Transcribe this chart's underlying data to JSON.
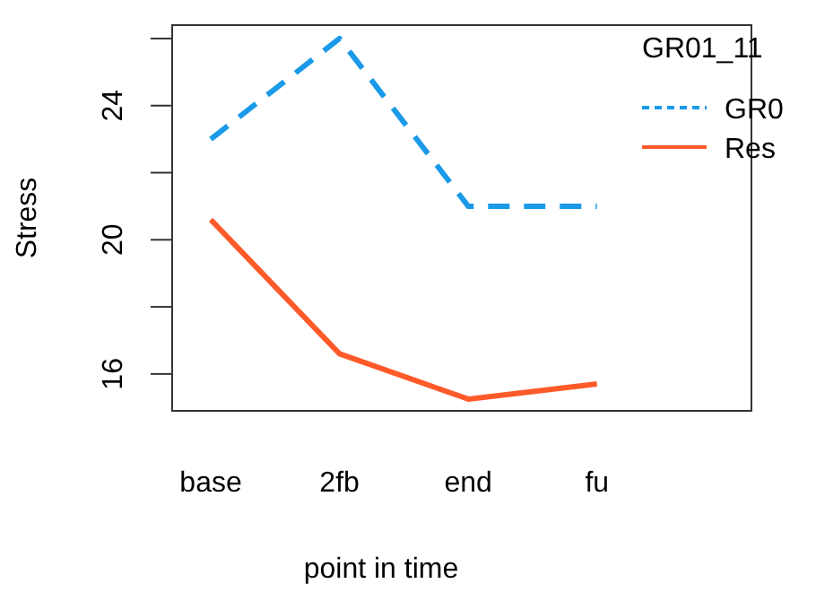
{
  "chart_data": {
    "type": "line",
    "xlabel": "point in time",
    "ylabel": "Stress",
    "legend_title": "GR01_11",
    "categories": [
      "base",
      "2fb",
      "end",
      "fu"
    ],
    "series": [
      {
        "name": "GR0",
        "color": "#1a9ae8",
        "values": [
          23,
          26,
          21,
          21
        ],
        "line_style": "dashed"
      },
      {
        "name": "Res",
        "color": "#ff5a2a",
        "values": [
          20.6,
          16.6,
          15.25,
          15.7
        ],
        "line_style": "solid"
      }
    ],
    "ylim": [
      14.9,
      26.4
    ],
    "yticks": [
      16,
      {
        "value": 18,
        "label": null
      },
      20,
      {
        "value": 22,
        "label": null
      },
      24,
      {
        "value": 26,
        "label": null
      }
    ],
    "legend": "top right",
    "grid": false
  }
}
